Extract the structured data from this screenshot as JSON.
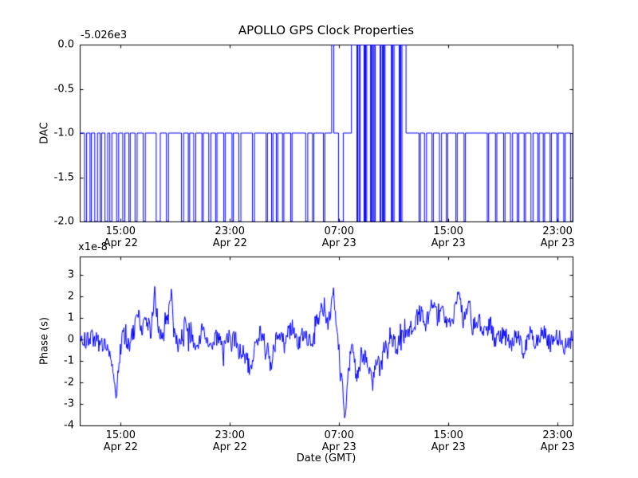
{
  "figure": {
    "bg": "#ffffff",
    "line_color": "#0000ff",
    "axis_color": "#000000"
  },
  "chart_data": [
    {
      "type": "line",
      "name": "dac-subplot",
      "title": "APOLLO GPS Clock Properties",
      "ylabel": "DAC",
      "offset_text": "-5.026e3",
      "xlim": [
        12.0,
        48.1
      ],
      "ylim": [
        -2.0,
        0.0
      ],
      "grid": false,
      "legend": null,
      "yticks": [
        {
          "v": 0.0,
          "label": "0.0"
        },
        {
          "v": -0.5,
          "label": "-0.5"
        },
        {
          "v": -1.0,
          "label": "-1.0"
        },
        {
          "v": -1.5,
          "label": "-1.5"
        },
        {
          "v": -2.0,
          "label": "-2.0"
        }
      ],
      "xticks": [
        {
          "v": 15,
          "label": "15:00",
          "sub": "Apr 22"
        },
        {
          "v": 23,
          "label": "23:00",
          "sub": "Apr 22"
        },
        {
          "v": 31,
          "label": "07:00",
          "sub": "Apr 23"
        },
        {
          "v": 39,
          "label": "15:00",
          "sub": "Apr 23"
        },
        {
          "v": 47,
          "label": "23:00",
          "sub": "Apr 23"
        }
      ],
      "step_points": [
        [
          12.0,
          -1
        ],
        [
          12.35,
          -2
        ],
        [
          12.5,
          -1
        ],
        [
          12.75,
          -2
        ],
        [
          12.85,
          -1
        ],
        [
          13.1,
          -2
        ],
        [
          13.3,
          -1
        ],
        [
          13.5,
          -2
        ],
        [
          13.6,
          -1
        ],
        [
          13.85,
          -2
        ],
        [
          14.05,
          -1
        ],
        [
          14.2,
          -2
        ],
        [
          14.35,
          -1
        ],
        [
          14.7,
          -2
        ],
        [
          14.85,
          -1
        ],
        [
          15.15,
          -2
        ],
        [
          15.3,
          -1
        ],
        [
          15.6,
          -2
        ],
        [
          15.7,
          -1
        ],
        [
          16.05,
          -2
        ],
        [
          16.2,
          -1
        ],
        [
          16.65,
          -2
        ],
        [
          16.8,
          -1
        ],
        [
          17.6,
          -2
        ],
        [
          17.9,
          -1
        ],
        [
          18.35,
          -2
        ],
        [
          18.5,
          -1
        ],
        [
          19.45,
          -2
        ],
        [
          19.6,
          -1
        ],
        [
          19.95,
          -2
        ],
        [
          20.05,
          -1
        ],
        [
          20.35,
          -2
        ],
        [
          20.5,
          -1
        ],
        [
          20.95,
          -2
        ],
        [
          21.05,
          -1
        ],
        [
          21.45,
          -2
        ],
        [
          21.6,
          -1
        ],
        [
          21.95,
          -2
        ],
        [
          22.05,
          -1
        ],
        [
          22.55,
          -2
        ],
        [
          22.65,
          -1
        ],
        [
          23.15,
          -2
        ],
        [
          23.25,
          -1
        ],
        [
          23.65,
          -2
        ],
        [
          23.8,
          -1
        ],
        [
          24.65,
          -2
        ],
        [
          24.8,
          -1
        ],
        [
          25.65,
          -2
        ],
        [
          25.75,
          -1
        ],
        [
          26.05,
          -2
        ],
        [
          26.15,
          -1
        ],
        [
          26.4,
          -2
        ],
        [
          26.5,
          -1
        ],
        [
          26.85,
          -2
        ],
        [
          26.95,
          -1
        ],
        [
          27.45,
          -2
        ],
        [
          27.55,
          -1
        ],
        [
          28.55,
          -2
        ],
        [
          28.7,
          -1
        ],
        [
          29.05,
          -2
        ],
        [
          29.15,
          -1
        ],
        [
          29.85,
          -2
        ],
        [
          29.95,
          -1
        ],
        [
          30.45,
          0
        ],
        [
          30.6,
          -1
        ],
        [
          30.95,
          -2
        ],
        [
          31.3,
          -1
        ],
        [
          31.9,
          0
        ],
        [
          32.3,
          -2
        ],
        [
          32.36,
          0
        ],
        [
          32.46,
          -2
        ],
        [
          32.54,
          0
        ],
        [
          32.82,
          -2
        ],
        [
          32.88,
          0
        ],
        [
          32.94,
          -2
        ],
        [
          33.02,
          0
        ],
        [
          33.3,
          -2
        ],
        [
          33.36,
          0
        ],
        [
          33.42,
          -2
        ],
        [
          33.5,
          0
        ],
        [
          33.56,
          -2
        ],
        [
          33.64,
          0
        ],
        [
          34.0,
          -2
        ],
        [
          34.06,
          0
        ],
        [
          34.16,
          -2
        ],
        [
          34.22,
          0
        ],
        [
          34.28,
          -2
        ],
        [
          34.36,
          0
        ],
        [
          34.82,
          -2
        ],
        [
          34.88,
          0
        ],
        [
          34.94,
          -2
        ],
        [
          35.02,
          0
        ],
        [
          35.4,
          -2
        ],
        [
          35.46,
          0
        ],
        [
          35.52,
          -2
        ],
        [
          35.6,
          0
        ],
        [
          35.9,
          -1
        ],
        [
          36.85,
          -2
        ],
        [
          36.95,
          -1
        ],
        [
          37.25,
          -2
        ],
        [
          37.4,
          -1
        ],
        [
          37.8,
          -2
        ],
        [
          37.9,
          -1
        ],
        [
          38.35,
          -2
        ],
        [
          38.5,
          -1
        ],
        [
          38.85,
          -2
        ],
        [
          38.95,
          -1
        ],
        [
          39.55,
          -2
        ],
        [
          39.65,
          -1
        ],
        [
          40.15,
          -2
        ],
        [
          40.25,
          -1
        ],
        [
          41.85,
          -2
        ],
        [
          41.95,
          -1
        ],
        [
          42.45,
          -2
        ],
        [
          42.55,
          -1
        ],
        [
          43.05,
          -2
        ],
        [
          43.15,
          -1
        ],
        [
          43.55,
          -2
        ],
        [
          43.7,
          -1
        ],
        [
          44.05,
          -2
        ],
        [
          44.15,
          -1
        ],
        [
          44.55,
          -2
        ],
        [
          44.65,
          -1
        ],
        [
          45.05,
          -2
        ],
        [
          45.2,
          -1
        ],
        [
          45.55,
          -2
        ],
        [
          45.65,
          -1
        ],
        [
          45.95,
          -2
        ],
        [
          46.05,
          -1
        ],
        [
          46.45,
          -2
        ],
        [
          46.55,
          -1
        ],
        [
          46.95,
          -2
        ],
        [
          47.05,
          -1
        ],
        [
          47.45,
          -2
        ],
        [
          47.55,
          -1
        ],
        [
          47.95,
          -2
        ],
        [
          48.1,
          -1
        ]
      ]
    },
    {
      "type": "line",
      "name": "phase-subplot",
      "ylabel": "Phase (s)",
      "xlabel": "Date (GMT)",
      "offset_text": "x1e-8",
      "xlim": [
        12.0,
        48.1
      ],
      "ylim": [
        -4.0,
        3.85
      ],
      "grid": false,
      "legend": null,
      "yticks": [
        {
          "v": 3,
          "label": "3"
        },
        {
          "v": 2,
          "label": "2"
        },
        {
          "v": 1,
          "label": "1"
        },
        {
          "v": 0,
          "label": "0"
        },
        {
          "v": -1,
          "label": "-1"
        },
        {
          "v": -2,
          "label": "-2"
        },
        {
          "v": -3,
          "label": "-3"
        },
        {
          "v": -4,
          "label": "-4"
        }
      ],
      "xticks": [
        {
          "v": 15,
          "label": "15:00",
          "sub": "Apr 22"
        },
        {
          "v": 23,
          "label": "23:00",
          "sub": "Apr 22"
        },
        {
          "v": 31,
          "label": "07:00",
          "sub": "Apr 23"
        },
        {
          "v": 39,
          "label": "15:00",
          "sub": "Apr 23"
        },
        {
          "v": 47,
          "label": "23:00",
          "sub": "Apr 23"
        }
      ],
      "anchors": [
        [
          12.0,
          0.0
        ],
        [
          12.5,
          -0.1
        ],
        [
          13.0,
          0.2
        ],
        [
          13.5,
          -0.3
        ],
        [
          14.0,
          -0.2
        ],
        [
          14.4,
          -1.0
        ],
        [
          14.7,
          -2.6
        ],
        [
          14.9,
          -0.8
        ],
        [
          15.2,
          0.3
        ],
        [
          15.6,
          -0.4
        ],
        [
          16.0,
          0.5
        ],
        [
          16.3,
          1.2
        ],
        [
          16.5,
          0.3
        ],
        [
          16.9,
          1.0
        ],
        [
          17.2,
          0.2
        ],
        [
          17.5,
          2.3
        ],
        [
          17.7,
          0.4
        ],
        [
          18.0,
          0.1
        ],
        [
          18.4,
          1.3
        ],
        [
          18.7,
          2.1
        ],
        [
          18.9,
          0.3
        ],
        [
          19.3,
          -0.4
        ],
        [
          19.7,
          0.8
        ],
        [
          20.0,
          0.1
        ],
        [
          20.5,
          -0.3
        ],
        [
          21.0,
          0.4
        ],
        [
          21.5,
          -0.2
        ],
        [
          22.0,
          0.1
        ],
        [
          22.5,
          -0.4
        ],
        [
          23.0,
          0.2
        ],
        [
          23.5,
          -0.1
        ],
        [
          24.0,
          -0.6
        ],
        [
          24.5,
          -1.4
        ],
        [
          24.8,
          -0.3
        ],
        [
          25.2,
          0.4
        ],
        [
          25.6,
          -0.2
        ],
        [
          26.0,
          -1.2
        ],
        [
          26.3,
          -0.2
        ],
        [
          26.7,
          0.3
        ],
        [
          27.0,
          -0.2
        ],
        [
          27.5,
          0.6
        ],
        [
          28.0,
          -0.1
        ],
        [
          28.5,
          0.3
        ],
        [
          29.0,
          -0.2
        ],
        [
          29.4,
          0.9
        ],
        [
          29.8,
          1.5
        ],
        [
          30.2,
          0.6
        ],
        [
          30.5,
          2.4
        ],
        [
          30.8,
          0.9
        ],
        [
          31.0,
          -0.6
        ],
        [
          31.2,
          -2.0
        ],
        [
          31.45,
          -3.7
        ],
        [
          31.7,
          -1.2
        ],
        [
          32.0,
          -0.4
        ],
        [
          32.3,
          -1.9
        ],
        [
          32.6,
          -0.6
        ],
        [
          33.0,
          -1.0
        ],
        [
          33.4,
          -2.1
        ],
        [
          33.7,
          -0.9
        ],
        [
          34.0,
          -1.4
        ],
        [
          34.4,
          -0.4
        ],
        [
          34.8,
          0.2
        ],
        [
          35.2,
          -0.5
        ],
        [
          35.6,
          0.3
        ],
        [
          36.0,
          0.1
        ],
        [
          36.5,
          0.8
        ],
        [
          37.0,
          1.3
        ],
        [
          37.4,
          0.9
        ],
        [
          37.8,
          1.6
        ],
        [
          38.2,
          1.0
        ],
        [
          38.6,
          1.4
        ],
        [
          39.0,
          0.6
        ],
        [
          39.4,
          1.1
        ],
        [
          39.8,
          2.3
        ],
        [
          40.1,
          0.7
        ],
        [
          40.5,
          1.9
        ],
        [
          40.8,
          0.6
        ],
        [
          41.2,
          1.0
        ],
        [
          41.6,
          0.3
        ],
        [
          42.0,
          0.7
        ],
        [
          42.5,
          -0.2
        ],
        [
          43.0,
          0.4
        ],
        [
          43.5,
          -0.3
        ],
        [
          44.0,
          0.2
        ],
        [
          44.5,
          -0.5
        ],
        [
          45.0,
          0.3
        ],
        [
          45.5,
          -0.2
        ],
        [
          46.0,
          0.4
        ],
        [
          46.5,
          -0.3
        ],
        [
          47.0,
          0.2
        ],
        [
          47.5,
          -0.4
        ],
        [
          48.1,
          0.1
        ]
      ],
      "noise": {
        "seed": 20,
        "amp": 0.42,
        "dt": 0.045,
        "spike_prob": 0.09,
        "spike_mult": 2.1
      }
    }
  ]
}
